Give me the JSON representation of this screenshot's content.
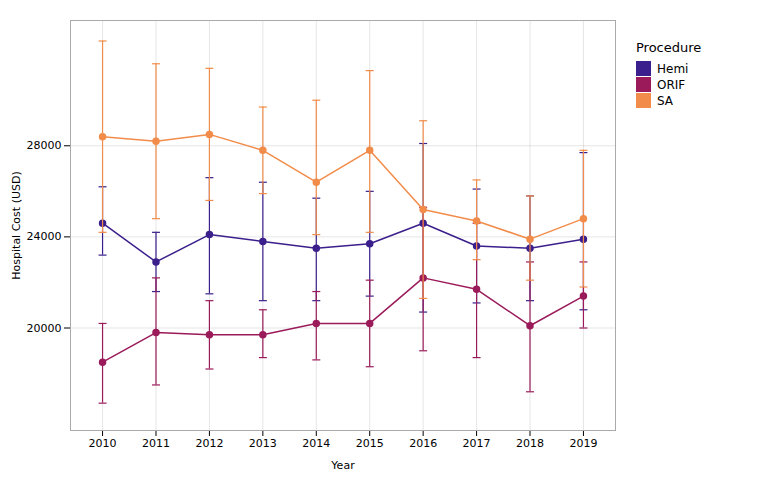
{
  "chart_data": {
    "type": "line",
    "xlabel": "Year",
    "ylabel": "Hospital Cost (USD)",
    "legend_title": "Procedure",
    "x": [
      2010,
      2011,
      2012,
      2013,
      2014,
      2015,
      2016,
      2017,
      2018,
      2019
    ],
    "series": [
      {
        "name": "Hemi",
        "color": "#3B1F8C",
        "marker": "circle",
        "values": [
          24600,
          22900,
          24100,
          23800,
          23500,
          23700,
          24600,
          23600,
          23500,
          23900
        ],
        "lower": [
          23200,
          21600,
          21500,
          21200,
          21200,
          21400,
          20700,
          21100,
          21200,
          20800
        ],
        "upper": [
          26200,
          24200,
          26600,
          26400,
          25700,
          26000,
          28100,
          26100,
          25800,
          27700
        ]
      },
      {
        "name": "ORIF",
        "color": "#9B1B5A",
        "marker": "circle",
        "values": [
          18500,
          19800,
          19700,
          19700,
          20200,
          20200,
          22200,
          21700,
          20100,
          21400
        ],
        "lower": [
          16700,
          17500,
          18200,
          18700,
          18600,
          18300,
          19000,
          18700,
          17200,
          20000
        ],
        "upper": [
          20200,
          22200,
          21200,
          20800,
          21600,
          22100,
          25300,
          24600,
          22900,
          22900
        ]
      },
      {
        "name": "SA",
        "color": "#F28C4A",
        "marker": "circle",
        "values": [
          28400,
          28200,
          28500,
          27800,
          26400,
          27800,
          25200,
          24700,
          23900,
          24800
        ],
        "lower": [
          24200,
          24800,
          25600,
          25900,
          24100,
          24200,
          21300,
          23000,
          22100,
          21800
        ],
        "upper": [
          32600,
          31600,
          31400,
          29700,
          30000,
          31300,
          29100,
          26500,
          25800,
          27800
        ]
      }
    ],
    "xlim": [
      2009.4,
      2019.6
    ],
    "xticks": [
      2010,
      2011,
      2012,
      2013,
      2014,
      2015,
      2016,
      2017,
      2018,
      2019
    ],
    "ylim": [
      15500,
      33500
    ],
    "yticks": [
      20000,
      24000,
      28000
    ],
    "grid": true,
    "legend": "right"
  }
}
